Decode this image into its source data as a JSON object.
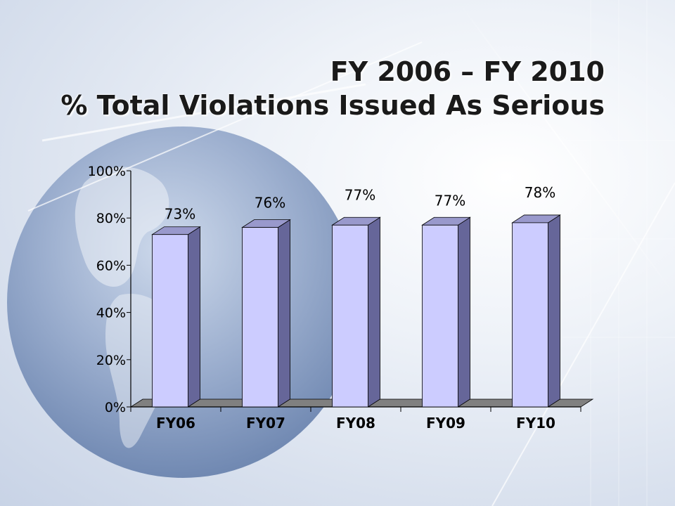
{
  "slide": {
    "title_line1": "FY 2006 – FY 2010",
    "title_line2": "% Total Violations Issued As Serious"
  },
  "colors": {
    "bar_front": "#ccccff",
    "bar_side": "#666699",
    "bar_top": "#9999cc",
    "floor": "#808080"
  },
  "chart_data": {
    "type": "bar",
    "title": "FY 2006 – FY 2010 % Total Violations Issued As Serious",
    "categories": [
      "FY06",
      "FY07",
      "FY08",
      "FY09",
      "FY10"
    ],
    "values": [
      73,
      76,
      77,
      77,
      78
    ],
    "data_labels": [
      "73%",
      "76%",
      "77%",
      "77%",
      "78%"
    ],
    "yticks": [
      "0%",
      "20%",
      "40%",
      "60%",
      "80%",
      "100%"
    ],
    "ylim": [
      0,
      100
    ],
    "xlabel": "",
    "ylabel": "",
    "grid": false,
    "legend": "none",
    "style": "3d-column"
  }
}
